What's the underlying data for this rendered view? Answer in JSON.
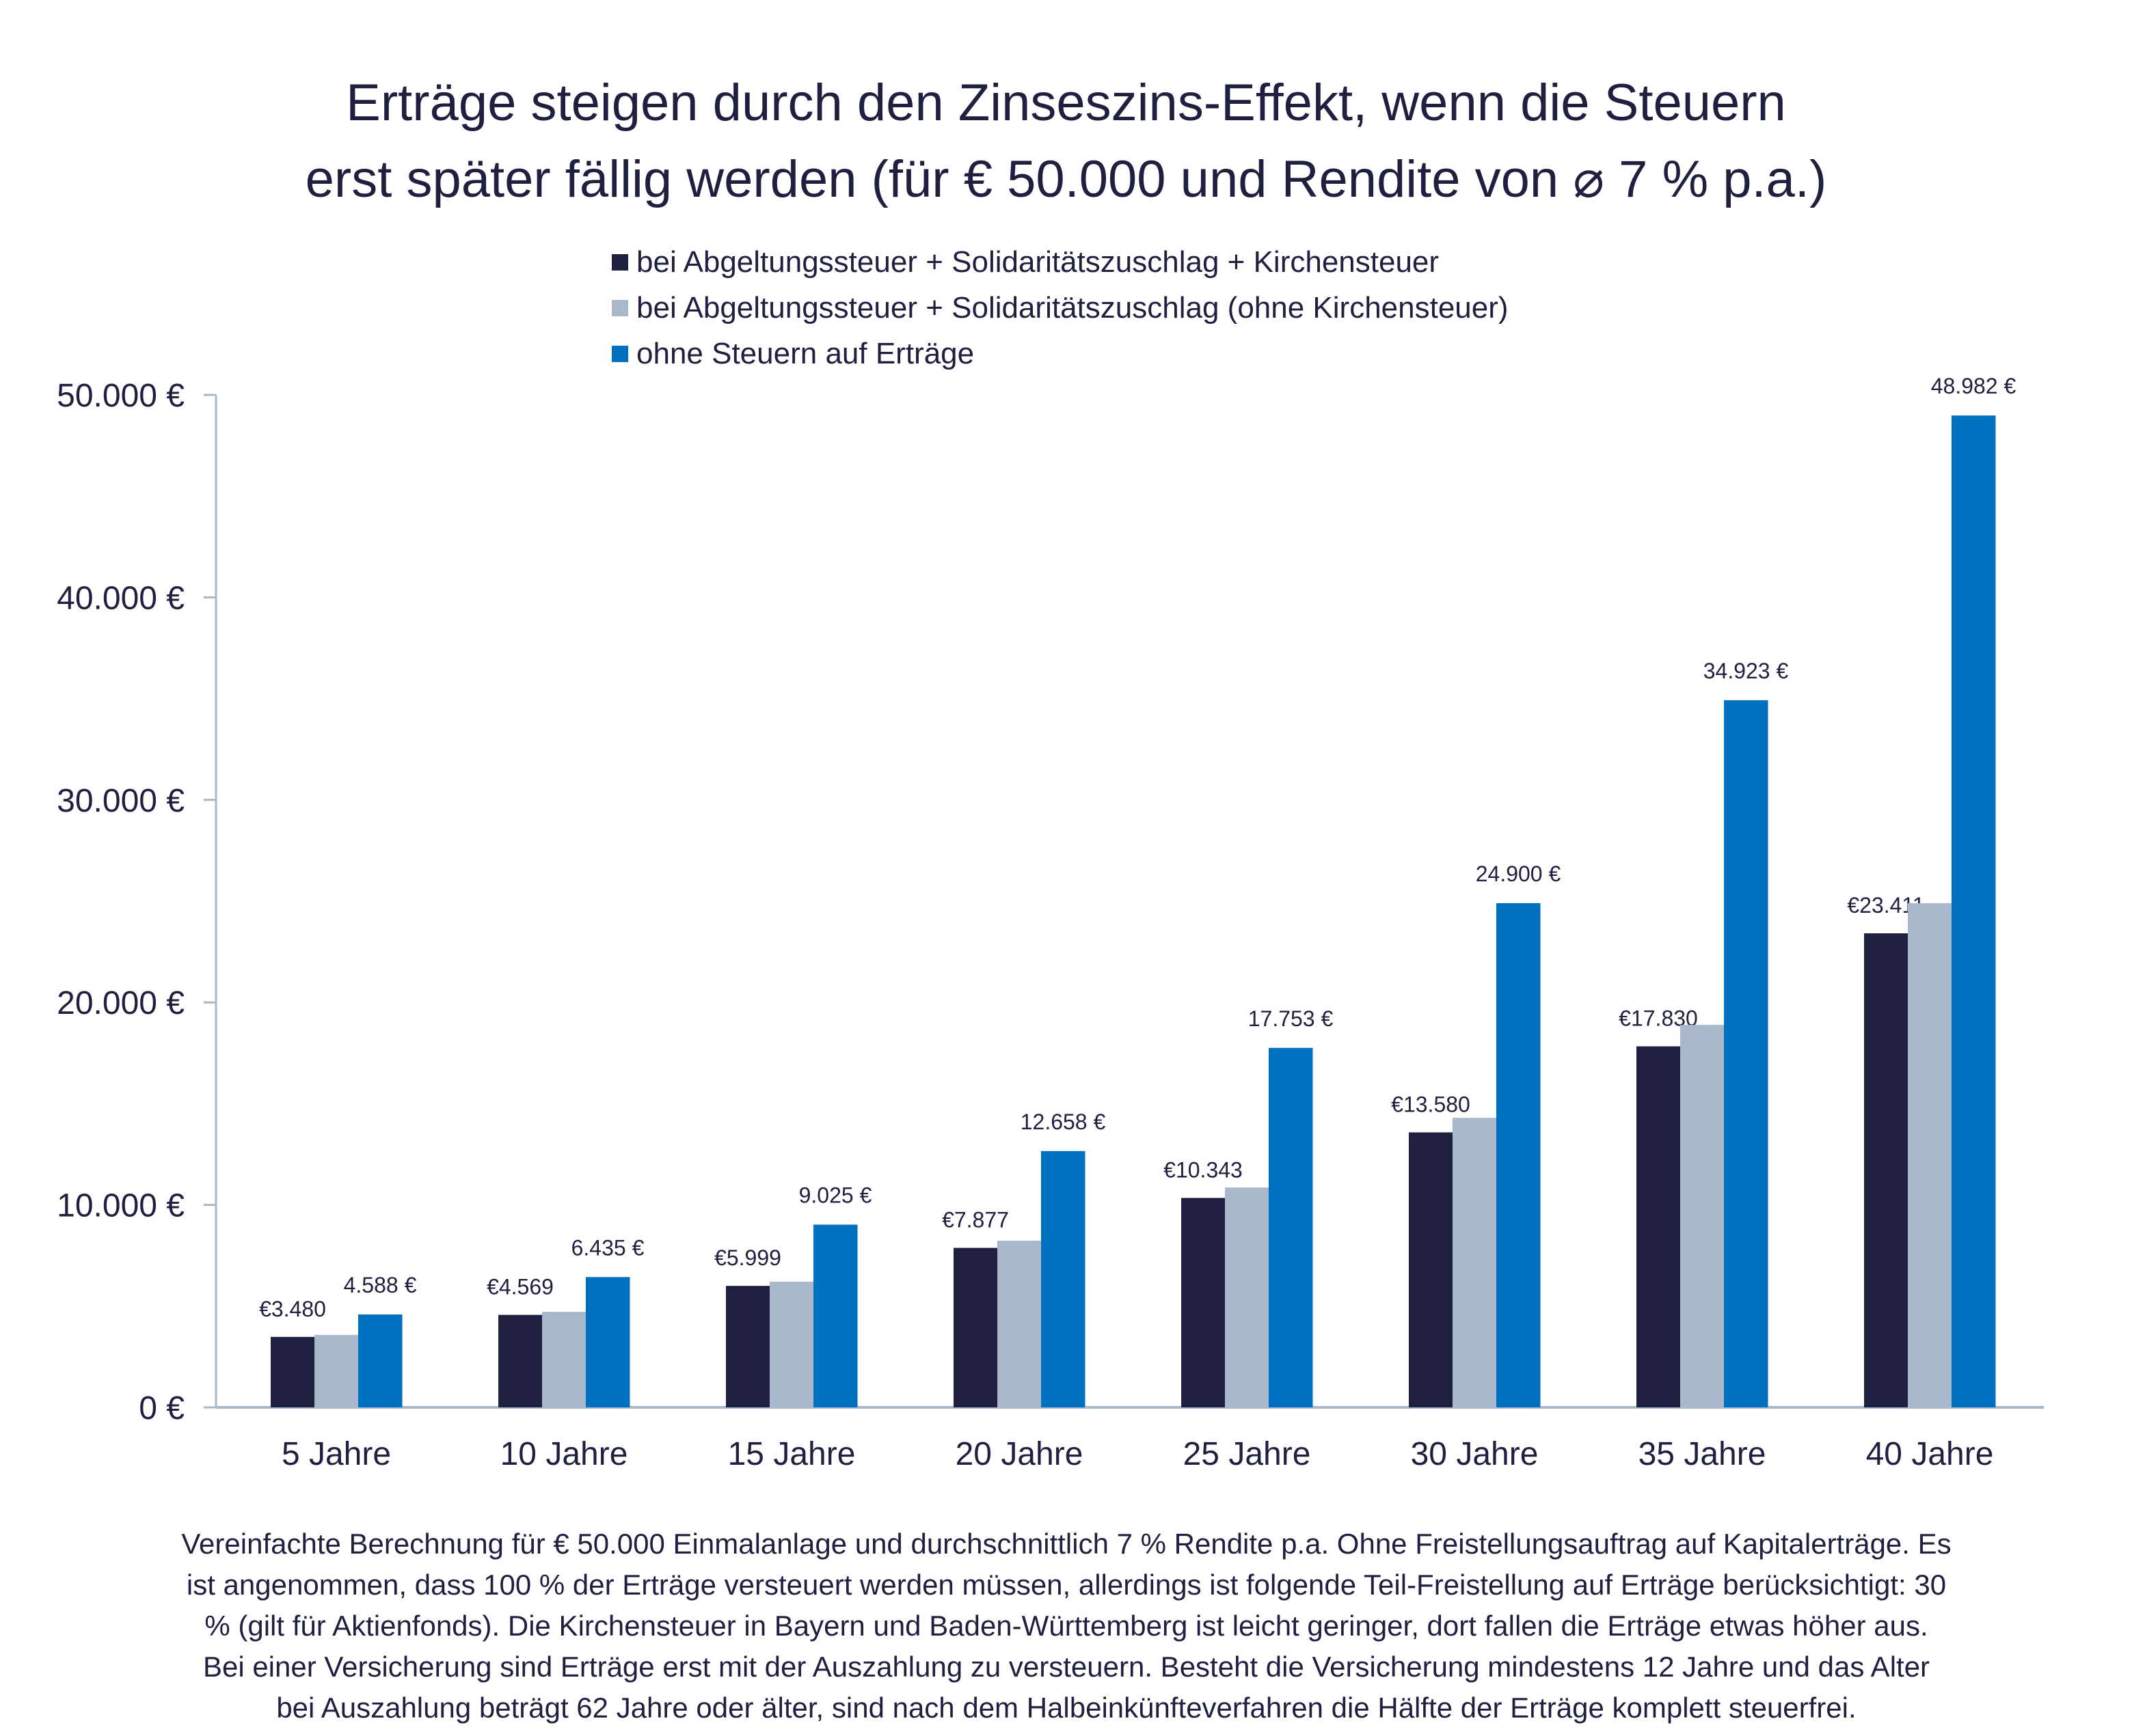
{
  "title": [
    "Erträge steigen durch den Zinseszins-Effekt, wenn die Steuern",
    "erst später fällig werden (für € 50.000 und Rendite von ⌀ 7 % p.a.)"
  ],
  "footnote": [
    "Vereinfachte Berechnung für € 50.000 Einmalanlage und durchschnittlich 7 % Rendite p.a. Ohne Freistellungsauftrag auf Kapitalerträge. Es",
    "ist angenommen, dass 100 % der Erträge versteuert werden müssen, allerdings ist folgende Teil-Freistellung auf Erträge berücksichtigt: 30",
    "% (gilt für Aktienfonds). Die Kirchensteuer in Bayern und Baden-Württemberg ist leicht geringer, dort fallen die Erträge etwas höher aus.",
    "Bei einer Versicherung sind Erträge erst mit der Auszahlung zu versteuern. Besteht die Versicherung mindestens 12 Jahre und das Alter",
    "bei Auszahlung beträgt 62 Jahre oder älter, sind nach dem Halbeinkünfteverfahren die Hälfte der Erträge komplett steuerfrei."
  ],
  "chart_data": {
    "type": "bar",
    "title": "Erträge steigen durch den Zinseszins-Effekt, wenn die Steuern erst später fällig werden (für € 50.000 und Rendite von ⌀ 7 % p.a.)",
    "categories": [
      "5 Jahre",
      "10 Jahre",
      "15 Jahre",
      "20 Jahre",
      "25 Jahre",
      "30 Jahre",
      "35 Jahre",
      "40 Jahre"
    ],
    "series": [
      {
        "name": "bei Abgeltungssteuer + Solidaritätszuschlag + Kirchensteuer",
        "color": "#1f2040",
        "values": [
          3480,
          4569,
          5999,
          7877,
          10343,
          13580,
          17830,
          23411
        ],
        "labels": [
          "€3.480",
          "€4.569",
          "€5.999",
          "€7.877",
          "€10.343",
          "€13.580",
          "€17.830",
          "€23.411"
        ]
      },
      {
        "name": "bei Abgeltungssteuer + Solidaritätszuschlag (ohne Kirchensteuer)",
        "color": "#a9b9cb",
        "values": [
          3580,
          4720,
          6210,
          8230,
          10860,
          14300,
          18890,
          24900
        ],
        "labels": []
      },
      {
        "name": "ohne Steuern auf Erträge",
        "color": "#0070c0",
        "values": [
          4588,
          6435,
          9025,
          12658,
          17753,
          24900,
          34923,
          48982
        ],
        "labels": [
          "4.588 €",
          "6.435 €",
          "9.025 €",
          "12.658 €",
          "17.753 €",
          "24.900 €",
          "34.923 €",
          "48.982 €"
        ]
      }
    ],
    "yticks": [
      0,
      10000,
      20000,
      30000,
      40000,
      50000
    ],
    "ytick_labels": [
      "0 €",
      "10.000 €",
      "20.000 €",
      "30.000 €",
      "40.000 €",
      "50.000 €"
    ],
    "ylim": [
      0,
      50000
    ],
    "xlabel": "",
    "ylabel": "",
    "grid": false,
    "legend_position": "top-center"
  },
  "axis_color": "#a9b9cb"
}
